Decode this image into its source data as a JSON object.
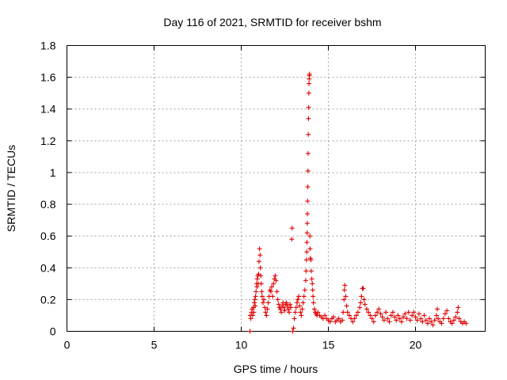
{
  "chart_data": {
    "type": "scatter",
    "title": "Day 116 of 2021, SRMTID for receiver bshm",
    "xlabel": "GPS time / hours",
    "ylabel": "SRMTID / TECUs",
    "xlim": [
      0,
      24
    ],
    "ylim": [
      0,
      1.8
    ],
    "xticks": [
      0,
      5,
      10,
      15,
      20
    ],
    "yticks": [
      0,
      0.2,
      0.4,
      0.6,
      0.8,
      1,
      1.2,
      1.4,
      1.6,
      1.8
    ],
    "xtick_labels": [
      "0",
      "5",
      "10",
      "15",
      "20"
    ],
    "ytick_labels": [
      "0",
      "0.2",
      "0.4",
      "0.6",
      "0.8",
      "1",
      "1.2",
      "1.4",
      "1.6",
      "1.8"
    ],
    "grid": true,
    "marker": "+",
    "series": [
      {
        "name": "bshm",
        "color": "#e00000",
        "points": [
          [
            10.5,
            0.0
          ],
          [
            10.52,
            0.1
          ],
          [
            10.55,
            0.08
          ],
          [
            10.6,
            0.12
          ],
          [
            10.62,
            0.14
          ],
          [
            10.65,
            0.1
          ],
          [
            10.7,
            0.15
          ],
          [
            10.72,
            0.12
          ],
          [
            10.75,
            0.18
          ],
          [
            10.78,
            0.2
          ],
          [
            10.8,
            0.16
          ],
          [
            10.82,
            0.22
          ],
          [
            10.85,
            0.25
          ],
          [
            10.88,
            0.3
          ],
          [
            10.9,
            0.28
          ],
          [
            10.92,
            0.33
          ],
          [
            10.95,
            0.35
          ],
          [
            10.98,
            0.3
          ],
          [
            11.0,
            0.36
          ],
          [
            11.02,
            0.44
          ],
          [
            11.05,
            0.52
          ],
          [
            11.08,
            0.48
          ],
          [
            11.1,
            0.4
          ],
          [
            11.12,
            0.35
          ],
          [
            11.15,
            0.3
          ],
          [
            11.18,
            0.25
          ],
          [
            11.2,
            0.22
          ],
          [
            11.25,
            0.18
          ],
          [
            11.3,
            0.2
          ],
          [
            11.35,
            0.15
          ],
          [
            11.4,
            0.12
          ],
          [
            11.45,
            0.1
          ],
          [
            11.5,
            0.14
          ],
          [
            11.55,
            0.18
          ],
          [
            11.6,
            0.22
          ],
          [
            11.65,
            0.26
          ],
          [
            11.7,
            0.25
          ],
          [
            11.75,
            0.28
          ],
          [
            11.8,
            0.22
          ],
          [
            11.85,
            0.3
          ],
          [
            11.9,
            0.33
          ],
          [
            11.95,
            0.35
          ],
          [
            12.0,
            0.32
          ],
          [
            12.05,
            0.25
          ],
          [
            12.1,
            0.2
          ],
          [
            12.15,
            0.17
          ],
          [
            12.2,
            0.15
          ],
          [
            12.25,
            0.14
          ],
          [
            12.3,
            0.12
          ],
          [
            12.35,
            0.16
          ],
          [
            12.4,
            0.18
          ],
          [
            12.45,
            0.15
          ],
          [
            12.5,
            0.13
          ],
          [
            12.55,
            0.17
          ],
          [
            12.6,
            0.18
          ],
          [
            12.65,
            0.16
          ],
          [
            12.7,
            0.14
          ],
          [
            12.75,
            0.12
          ],
          [
            12.8,
            0.17
          ],
          [
            12.85,
            0.15
          ],
          [
            12.9,
            0.58
          ],
          [
            12.92,
            0.65
          ],
          [
            12.95,
            0.0
          ],
          [
            13.0,
            0.02
          ],
          [
            13.05,
            0.08
          ],
          [
            13.1,
            0.12
          ],
          [
            13.15,
            0.15
          ],
          [
            13.2,
            0.18
          ],
          [
            13.25,
            0.2
          ],
          [
            13.3,
            0.22
          ],
          [
            13.35,
            0.16
          ],
          [
            13.4,
            0.12
          ],
          [
            13.45,
            0.1
          ],
          [
            13.5,
            0.14
          ],
          [
            13.55,
            0.18
          ],
          [
            13.6,
            0.22
          ],
          [
            13.65,
            0.26
          ],
          [
            13.7,
            0.32
          ],
          [
            13.72,
            0.38
          ],
          [
            13.74,
            0.45
          ],
          [
            13.76,
            0.5
          ],
          [
            13.77,
            0.56
          ],
          [
            13.78,
            0.62
          ],
          [
            13.79,
            0.68
          ],
          [
            13.8,
            0.74
          ],
          [
            13.81,
            0.82
          ],
          [
            13.82,
            0.91
          ],
          [
            13.83,
            1.01
          ],
          [
            13.84,
            1.12
          ],
          [
            13.85,
            1.24
          ],
          [
            13.86,
            1.34
          ],
          [
            13.87,
            1.41
          ],
          [
            13.88,
            1.5
          ],
          [
            13.89,
            1.56
          ],
          [
            13.9,
            1.59
          ],
          [
            13.91,
            1.61
          ],
          [
            13.92,
            1.62
          ],
          [
            13.94,
            0.6
          ],
          [
            13.95,
            0.52
          ],
          [
            13.97,
            0.46
          ],
          [
            14.0,
            0.45
          ],
          [
            14.02,
            0.38
          ],
          [
            14.05,
            0.33
          ],
          [
            14.08,
            0.3
          ],
          [
            14.1,
            0.26
          ],
          [
            14.12,
            0.22
          ],
          [
            14.15,
            0.18
          ],
          [
            14.2,
            0.14
          ],
          [
            14.25,
            0.12
          ],
          [
            14.3,
            0.11
          ],
          [
            14.35,
            0.1
          ],
          [
            14.4,
            0.12
          ],
          [
            14.5,
            0.1
          ],
          [
            14.6,
            0.09
          ],
          [
            14.7,
            0.08
          ],
          [
            14.8,
            0.1
          ],
          [
            14.9,
            0.08
          ],
          [
            15.0,
            0.07
          ],
          [
            15.1,
            0.06
          ],
          [
            15.2,
            0.08
          ],
          [
            15.3,
            0.09
          ],
          [
            15.4,
            0.06
          ],
          [
            15.5,
            0.07
          ],
          [
            15.6,
            0.08
          ],
          [
            15.7,
            0.06
          ],
          [
            15.8,
            0.07
          ],
          [
            15.85,
            0.12
          ],
          [
            15.9,
            0.2
          ],
          [
            15.92,
            0.26
          ],
          [
            15.95,
            0.29
          ],
          [
            16.0,
            0.22
          ],
          [
            16.05,
            0.16
          ],
          [
            16.1,
            0.12
          ],
          [
            16.2,
            0.1
          ],
          [
            16.3,
            0.08
          ],
          [
            16.4,
            0.06
          ],
          [
            16.5,
            0.08
          ],
          [
            16.6,
            0.1
          ],
          [
            16.7,
            0.12
          ],
          [
            16.8,
            0.15
          ],
          [
            16.85,
            0.18
          ],
          [
            16.9,
            0.22
          ],
          [
            16.95,
            0.27
          ],
          [
            17.0,
            0.27
          ],
          [
            17.05,
            0.2
          ],
          [
            17.1,
            0.17
          ],
          [
            17.2,
            0.14
          ],
          [
            17.3,
            0.12
          ],
          [
            17.4,
            0.1
          ],
          [
            17.5,
            0.08
          ],
          [
            17.6,
            0.06
          ],
          [
            17.7,
            0.1
          ],
          [
            17.8,
            0.12
          ],
          [
            17.9,
            0.14
          ],
          [
            18.0,
            0.11
          ],
          [
            18.1,
            0.09
          ],
          [
            18.2,
            0.07
          ],
          [
            18.3,
            0.12
          ],
          [
            18.4,
            0.08
          ],
          [
            18.5,
            0.06
          ],
          [
            18.6,
            0.1
          ],
          [
            18.7,
            0.12
          ],
          [
            18.8,
            0.09
          ],
          [
            18.9,
            0.07
          ],
          [
            19.0,
            0.1
          ],
          [
            19.1,
            0.08
          ],
          [
            19.2,
            0.06
          ],
          [
            19.3,
            0.09
          ],
          [
            19.4,
            0.11
          ],
          [
            19.5,
            0.08
          ],
          [
            19.6,
            0.12
          ],
          [
            19.7,
            0.07
          ],
          [
            19.8,
            0.1
          ],
          [
            19.9,
            0.12
          ],
          [
            20.0,
            0.09
          ],
          [
            20.1,
            0.07
          ],
          [
            20.2,
            0.11
          ],
          [
            20.3,
            0.08
          ],
          [
            20.4,
            0.06
          ],
          [
            20.5,
            0.1
          ],
          [
            20.6,
            0.07
          ],
          [
            20.7,
            0.05
          ],
          [
            20.8,
            0.08
          ],
          [
            20.9,
            0.06
          ],
          [
            21.0,
            0.04
          ],
          [
            21.1,
            0.07
          ],
          [
            21.2,
            0.1
          ],
          [
            21.25,
            0.14
          ],
          [
            21.3,
            0.08
          ],
          [
            21.4,
            0.06
          ],
          [
            21.5,
            0.05
          ],
          [
            21.6,
            0.08
          ],
          [
            21.7,
            0.11
          ],
          [
            21.8,
            0.13
          ],
          [
            21.9,
            0.08
          ],
          [
            22.0,
            0.06
          ],
          [
            22.1,
            0.05
          ],
          [
            22.2,
            0.07
          ],
          [
            22.3,
            0.09
          ],
          [
            22.4,
            0.12
          ],
          [
            22.45,
            0.15
          ],
          [
            22.5,
            0.08
          ],
          [
            22.6,
            0.06
          ],
          [
            22.7,
            0.05
          ],
          [
            22.8,
            0.06
          ],
          [
            22.9,
            0.05
          ]
        ]
      }
    ]
  }
}
